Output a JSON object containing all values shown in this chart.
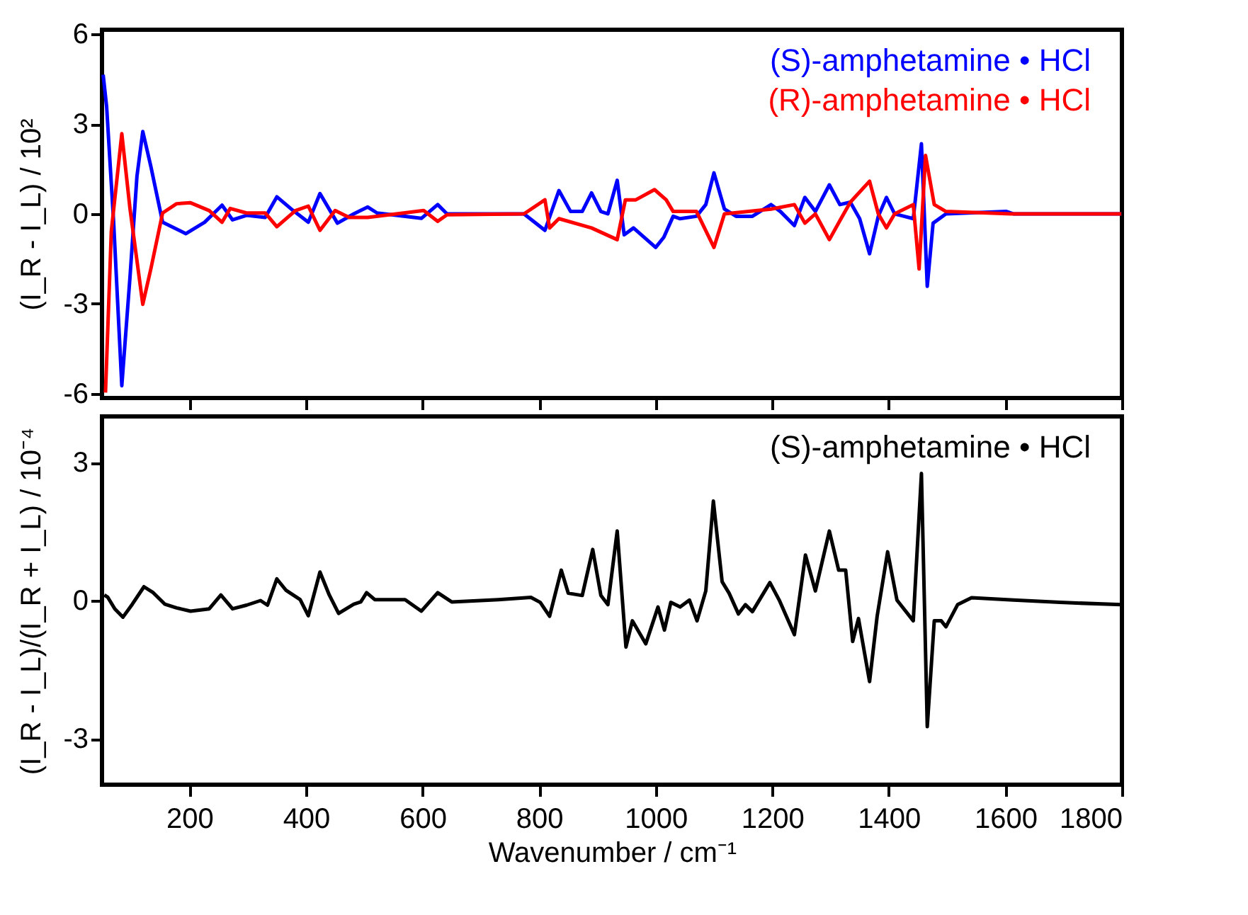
{
  "chart_data": [
    {
      "type": "line",
      "ylabel": "(I_R - I_L) / 10²",
      "xlim": [
        50,
        1800
      ],
      "xticks": [
        {
          "value": 200,
          "label": null
        },
        {
          "value": 400,
          "label": null
        },
        {
          "value": 600,
          "label": null
        },
        {
          "value": 800,
          "label": null
        },
        {
          "value": 1000,
          "label": null
        },
        {
          "value": 1200,
          "label": null
        },
        {
          "value": 1400,
          "label": null
        },
        {
          "value": 1600,
          "label": null
        },
        {
          "value": 1800,
          "label": null
        }
      ],
      "ylim": [
        -6.15,
        6.15
      ],
      "yticks": [
        -6,
        -3,
        0,
        3,
        6
      ],
      "tick_labels": "y",
      "legend": "top right",
      "grid": false,
      "line_style": "solid",
      "marker": "none",
      "series": [
        {
          "name": "(S)-amphetamine • HCl",
          "color": "#0000ff",
          "x": [
            52,
            58,
            70,
            84,
            98,
            110,
            120,
            134,
            154,
            194,
            226,
            256,
            274,
            298,
            330,
            350,
            378,
            404,
            424,
            454,
            482,
            506,
            522,
            598,
            626,
            642,
            774,
            810,
            834,
            854,
            874,
            890,
            906,
            918,
            934,
            946,
            962,
            1000,
            1014,
            1030,
            1042,
            1070,
            1086,
            1100,
            1118,
            1138,
            1166,
            1198,
            1214,
            1238,
            1256,
            1274,
            1298,
            1316,
            1334,
            1350,
            1367,
            1382,
            1396,
            1410,
            1442,
            1456,
            1466,
            1476,
            1498,
            1602,
            1614,
            1799
          ],
          "values": [
            4.65,
            3.57,
            -0.28,
            -5.74,
            -2.12,
            1.26,
            2.75,
            1.57,
            -0.28,
            -0.66,
            -0.28,
            0.29,
            -0.2,
            -0.05,
            -0.12,
            0.57,
            0.11,
            -0.28,
            0.68,
            -0.31,
            0,
            0.23,
            0.03,
            -0.15,
            0.31,
            0,
            0,
            -0.55,
            0.78,
            0.08,
            0.08,
            0.7,
            0.08,
            0,
            1.12,
            -0.7,
            -0.47,
            -1.12,
            -0.78,
            -0.08,
            -0.16,
            -0.08,
            0.31,
            1.37,
            0.16,
            -0.08,
            -0.08,
            0.31,
            0.08,
            -0.39,
            0.55,
            0.08,
            0.97,
            0.31,
            0.39,
            -0.16,
            -1.33,
            -0.08,
            0.55,
            0,
            -0.16,
            2.34,
            -2.42,
            -0.31,
            0,
            0.08,
            0,
            0
          ]
        },
        {
          "name": "(R)-amphetamine • HCl",
          "color": "#ff0000",
          "x": [
            56,
            66,
            84,
            98,
            120,
            134,
            154,
            178,
            202,
            234,
            256,
            270,
            298,
            330,
            350,
            382,
            404,
            424,
            450,
            474,
            506,
            602,
            626,
            642,
            774,
            810,
            818,
            834,
            890,
            934,
            948,
            966,
            998,
            1018,
            1030,
            1070,
            1100,
            1118,
            1198,
            1238,
            1256,
            1274,
            1298,
            1318,
            1334,
            1367,
            1382,
            1396,
            1410,
            1442,
            1452,
            1463,
            1478,
            1498,
            1610,
            1799
          ],
          "values": [
            -5.97,
            -0.58,
            2.68,
            0.18,
            -3.02,
            -1.82,
            0.03,
            0.34,
            0.37,
            0.11,
            -0.28,
            0.18,
            0.03,
            0.03,
            -0.43,
            0.11,
            0.26,
            -0.55,
            0.11,
            -0.12,
            -0.12,
            0.11,
            -0.25,
            -0.03,
            0,
            0.47,
            -0.47,
            -0.16,
            -0.47,
            -0.86,
            0.47,
            0.47,
            0.81,
            0.47,
            0.08,
            0.08,
            -1.12,
            0,
            0.16,
            0.31,
            -0.31,
            0,
            -0.86,
            -0.16,
            0.39,
            1.09,
            0,
            -0.47,
            0,
            0.31,
            -1.84,
            1.95,
            0.31,
            0.08,
            0,
            0
          ]
        }
      ]
    },
    {
      "type": "line",
      "xlabel": "Wavenumber / cm⁻¹",
      "ylabel": "(I_R - I_L)/(I_R + I_L) / 10⁻⁴",
      "xlim": [
        50,
        1800
      ],
      "xticks": [
        200,
        400,
        600,
        800,
        1000,
        1200,
        1400,
        1600,
        1800
      ],
      "ylim": [
        -4,
        4
      ],
      "yticks": [
        -3,
        0,
        3
      ],
      "legend": "top right",
      "grid": false,
      "line_style": "solid",
      "marker": "none",
      "series": [
        {
          "name": "(S)-amphetamine • HCl",
          "color": "#000000",
          "x": [
            54,
            60,
            72,
            86,
            102,
            122,
            138,
            158,
            178,
            202,
            234,
            254,
            274,
            298,
            322,
            334,
            350,
            366,
            390,
            404,
            424,
            440,
            456,
            482,
            494,
            504,
            518,
            570,
            598,
            626,
            650,
            730,
            786,
            802,
            818,
            838,
            850,
            874,
            892,
            906,
            918,
            934,
            949,
            960,
            983,
            1004,
            1015,
            1026,
            1042,
            1058,
            1071,
            1086,
            1099,
            1114,
            1126,
            1142,
            1154,
            1166,
            1196,
            1212,
            1238,
            1257,
            1274,
            1298,
            1314,
            1326,
            1338,
            1348,
            1367,
            1380,
            1398,
            1414,
            1442,
            1456,
            1466,
            1478,
            1490,
            1498,
            1518,
            1542,
            1614,
            1694,
            1799
          ],
          "values": [
            0.12,
            0.07,
            -0.18,
            -0.36,
            -0.08,
            0.3,
            0.17,
            -0.08,
            -0.16,
            -0.23,
            -0.18,
            0.12,
            -0.18,
            -0.1,
            0,
            -0.1,
            0.47,
            0.22,
            0.02,
            -0.33,
            0.62,
            0.12,
            -0.28,
            -0.08,
            -0.03,
            0.17,
            0.02,
            0.02,
            -0.23,
            0.17,
            -0.03,
            0.02,
            0.07,
            -0.04,
            -0.34,
            0.66,
            0.16,
            0.11,
            1.11,
            0.11,
            -0.09,
            1.51,
            -1.01,
            -0.44,
            -0.94,
            -0.14,
            -0.64,
            -0.04,
            -0.14,
            0.01,
            -0.44,
            0.21,
            2.16,
            0.41,
            0.16,
            -0.29,
            -0.09,
            -0.24,
            0.39,
            0.01,
            -0.74,
            0.99,
            0.21,
            1.51,
            0.66,
            0.66,
            -0.89,
            -0.39,
            -1.76,
            -0.34,
            1.06,
            0.01,
            -0.44,
            2.76,
            -2.74,
            -0.44,
            -0.44,
            -0.57,
            -0.09,
            0.06,
            0.01,
            -0.04,
            -0.09
          ]
        }
      ]
    }
  ]
}
